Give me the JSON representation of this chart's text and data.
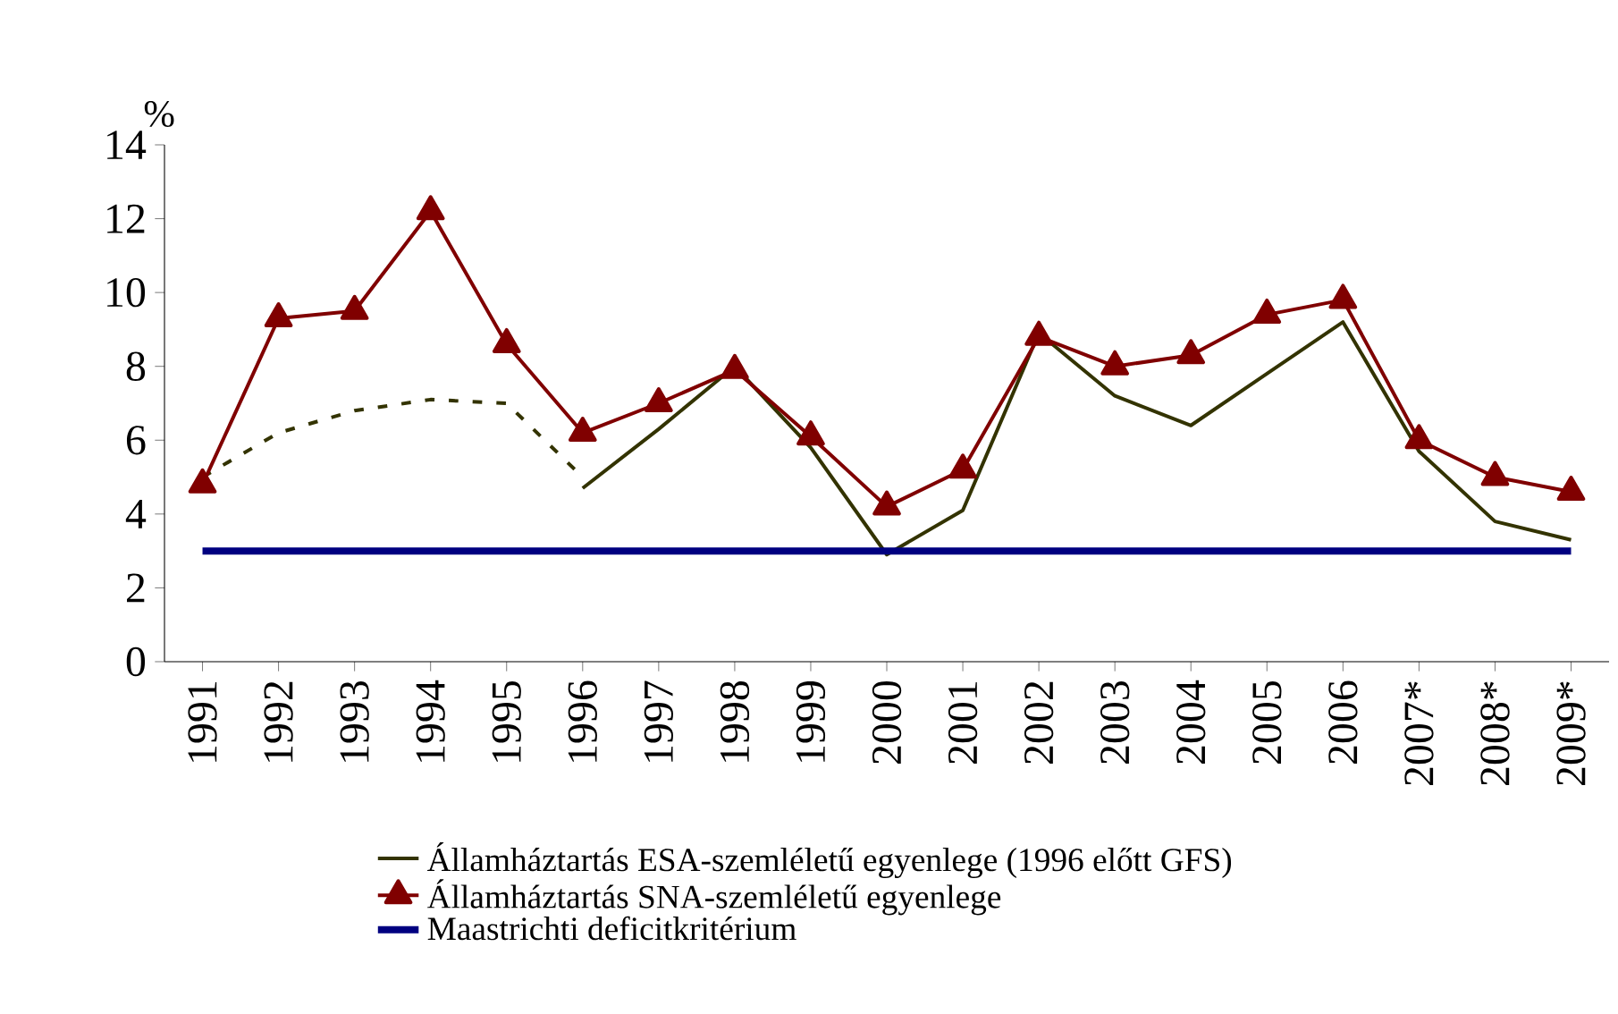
{
  "chart_data": {
    "type": "line",
    "ylabel": "%",
    "categories": [
      "1991",
      "1992",
      "1993",
      "1994",
      "1995",
      "1996",
      "1997",
      "1998",
      "1999",
      "2000",
      "2001",
      "2002",
      "2003",
      "2004",
      "2005",
      "2006",
      "2007*",
      "2008*",
      "2009*"
    ],
    "ylim": [
      0,
      14
    ],
    "yticks": [
      0,
      2,
      4,
      6,
      8,
      10,
      12,
      14
    ],
    "legend": "bottom",
    "grid": false,
    "series": [
      {
        "name": "Államháztartás ESA-szemléletű egyenlege (1996 előtt GFS)",
        "color": "#333300",
        "line_style": "solid",
        "values": [
          null,
          null,
          null,
          null,
          null,
          4.7,
          6.3,
          8.0,
          5.8,
          2.9,
          4.1,
          8.9,
          7.2,
          6.4,
          7.8,
          9.2,
          5.7,
          3.8,
          3.3
        ]
      },
      {
        "color": "#333300",
        "line_style": "dotted",
        "values": [
          5.0,
          6.2,
          6.8,
          7.1,
          7.0,
          5.0,
          null,
          null,
          null,
          null,
          null,
          null,
          null,
          null,
          null,
          null,
          null,
          null,
          null
        ]
      },
      {
        "name": "Államháztartás SNA-szemléletű egyenlege",
        "color": "#800000",
        "marker": "triangle",
        "values": [
          4.8,
          9.3,
          9.5,
          12.2,
          8.6,
          6.2,
          7.0,
          7.9,
          6.1,
          4.2,
          5.2,
          8.8,
          8.0,
          8.3,
          9.4,
          9.8,
          6.0,
          5.0,
          4.6
        ]
      },
      {
        "name": "Maastrichti deficitkritérium",
        "color": "#000080",
        "values": [
          3,
          3,
          3,
          3,
          3,
          3,
          3,
          3,
          3,
          3,
          3,
          3,
          3,
          3,
          3,
          3,
          3,
          3,
          3
        ]
      }
    ]
  }
}
